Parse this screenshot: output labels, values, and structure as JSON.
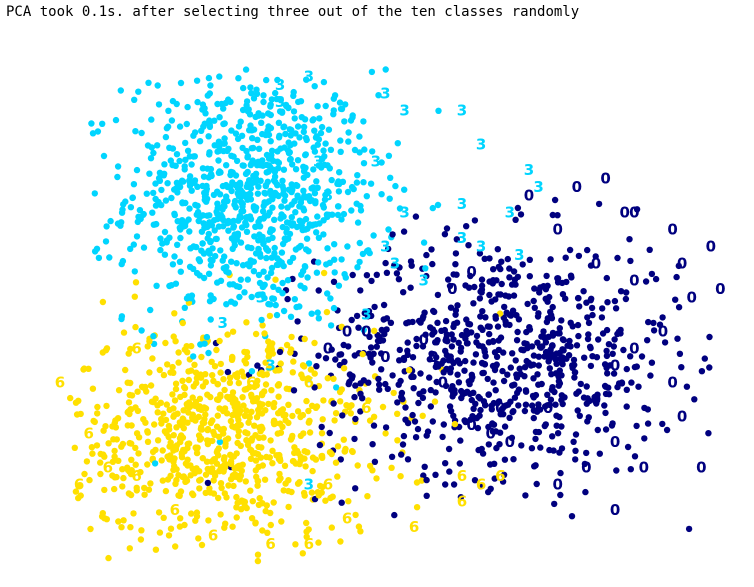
{
  "chart_data": {
    "type": "scatter",
    "title": "PCA took 0.1s. after selecting three out of the ten classes randomly",
    "xlabel": "",
    "ylabel": "",
    "grid": false,
    "axes_visible": false,
    "xlim": [
      -30,
      40
    ],
    "ylim": [
      -30,
      30
    ],
    "series": [
      {
        "label": "3",
        "color": "#00d5ff",
        "center": [
          -10,
          14
        ],
        "spread": [
          6.5,
          7.5
        ],
        "count": 900,
        "marker_labels": [
          [
            -7,
            27
          ],
          [
            -4,
            28
          ],
          [
            4,
            26
          ],
          [
            6,
            24
          ],
          [
            12,
            24
          ],
          [
            14,
            20
          ],
          [
            19,
            17
          ],
          [
            20,
            15
          ],
          [
            17,
            12
          ],
          [
            12,
            13
          ],
          [
            12,
            9
          ],
          [
            18,
            7
          ],
          [
            14,
            8
          ],
          [
            -2,
            14
          ],
          [
            -9,
            2
          ],
          [
            -13,
            -1
          ],
          [
            4,
            8
          ],
          [
            5,
            6
          ],
          [
            8,
            4
          ],
          [
            6,
            12
          ],
          [
            3,
            18
          ],
          [
            -3,
            18
          ],
          [
            -7,
            25
          ],
          [
            2,
            0
          ],
          [
            -4,
            -20
          ],
          [
            -8,
            -6
          ]
        ]
      },
      {
        "label": "0",
        "color": "#00007f",
        "center": [
          16,
          -5
        ],
        "spread": [
          9.5,
          7.0
        ],
        "count": 800,
        "marker_labels": [
          [
            29,
            12
          ],
          [
            34,
            10
          ],
          [
            38,
            8
          ],
          [
            35,
            6
          ],
          [
            39,
            3
          ],
          [
            36,
            2
          ],
          [
            30,
            4
          ],
          [
            26,
            6
          ],
          [
            22,
            10
          ],
          [
            19,
            14
          ],
          [
            24,
            15
          ],
          [
            33,
            -2
          ],
          [
            34,
            -8
          ],
          [
            35,
            -12
          ],
          [
            37,
            -18
          ],
          [
            31,
            -18
          ],
          [
            28,
            -15
          ],
          [
            25,
            -18
          ],
          [
            22,
            -20
          ],
          [
            17,
            -15
          ],
          [
            15,
            -14
          ],
          [
            13,
            -13
          ],
          [
            16,
            -11
          ],
          [
            21,
            -11
          ],
          [
            26,
            -10
          ],
          [
            28,
            -6
          ],
          [
            30,
            -4
          ],
          [
            10,
            -8
          ],
          [
            9,
            -5
          ],
          [
            8,
            -3
          ],
          [
            11,
            3
          ],
          [
            13,
            5
          ],
          [
            2,
            -2
          ],
          [
            0,
            -2
          ],
          [
            -2,
            -4
          ],
          [
            4,
            -5
          ],
          [
            28,
            -23
          ],
          [
            30,
            12
          ],
          [
            27,
            16
          ]
        ]
      },
      {
        "label": "6",
        "color": "#ffe000",
        "center": [
          -13,
          -14
        ],
        "spread": [
          8.0,
          6.5
        ],
        "count": 800,
        "marker_labels": [
          [
            -28,
            -20
          ],
          [
            -25,
            -18
          ],
          [
            -22,
            -19
          ],
          [
            -18,
            -23
          ],
          [
            -14,
            -26
          ],
          [
            -8,
            -27
          ],
          [
            -4,
            -27
          ],
          [
            0,
            -24
          ],
          [
            7,
            -25
          ],
          [
            12,
            -22
          ],
          [
            12,
            -19
          ],
          [
            14,
            -20
          ],
          [
            16,
            -19
          ],
          [
            -2,
            -20
          ],
          [
            2,
            -11
          ],
          [
            -4,
            -8
          ],
          [
            -8,
            -4
          ],
          [
            -22,
            -4
          ],
          [
            -30,
            -8
          ],
          [
            -27,
            -14
          ],
          [
            -10,
            -8
          ]
        ]
      }
    ]
  }
}
